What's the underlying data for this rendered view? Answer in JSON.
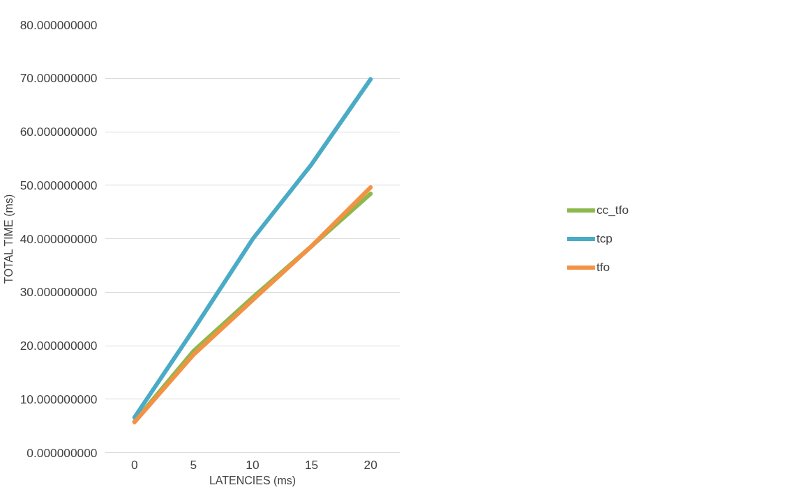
{
  "chart_data": {
    "type": "line",
    "xlabel": "LATENCIES (ms)",
    "ylabel": "TOTAL TIME (ms)",
    "categories": [
      "0",
      "5",
      "10",
      "15",
      "20"
    ],
    "series": [
      {
        "name": "cc_tfo",
        "color": "#8cb84c",
        "values": [
          5.8,
          19.0,
          29.0,
          38.6,
          48.4
        ]
      },
      {
        "name": "tcp",
        "color": "#4aabc6",
        "values": [
          6.6,
          23.0,
          39.9,
          53.9,
          69.8
        ]
      },
      {
        "name": "tfo",
        "color": "#f39244",
        "values": [
          5.7,
          18.3,
          28.5,
          38.6,
          49.6
        ]
      }
    ],
    "ylim": [
      0,
      80
    ],
    "yticks": [
      {
        "value": 0,
        "label": "0.000000000"
      },
      {
        "value": 10,
        "label": "10.000000000"
      },
      {
        "value": 20,
        "label": "20.000000000"
      },
      {
        "value": 30,
        "label": "30.000000000"
      },
      {
        "value": 40,
        "label": "40.000000000"
      },
      {
        "value": 50,
        "label": "50.000000000"
      },
      {
        "value": 60,
        "label": "60.000000000"
      },
      {
        "value": 70,
        "label": "70.000000000"
      },
      {
        "value": 80,
        "label": "80.000000000"
      }
    ],
    "grid": "y",
    "legend": "right",
    "marker": "none",
    "line_style": "solid"
  }
}
